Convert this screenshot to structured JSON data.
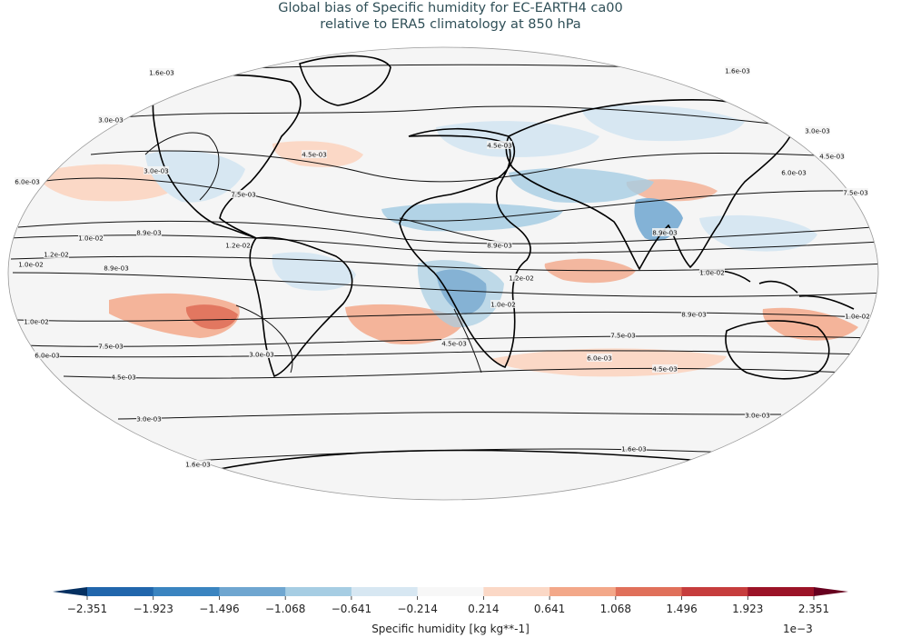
{
  "title": {
    "line1": "Global bias of Specific humidity for EC-EARTH4 ca00",
    "line2": "relative to ERA5 climatology at 850 hPa"
  },
  "colorbar": {
    "ticks": [
      "−2.351",
      "−1.923",
      "−1.496",
      "−1.068",
      "−0.641",
      "−0.214",
      "0.214",
      "0.641",
      "1.068",
      "1.496",
      "1.923",
      "2.351"
    ],
    "colors": [
      "#2166ac",
      "#3a84c0",
      "#6fa6d0",
      "#a6cde3",
      "#d7e7f2",
      "#f7f7f7",
      "#fbd8c6",
      "#f3a889",
      "#e0705a",
      "#c63d3d",
      "#9b1327"
    ],
    "under_color": "#053061",
    "over_color": "#67001f",
    "label": "Specific humidity [kg kg**-1]",
    "multiplier": "1e−3"
  },
  "map": {
    "projection": "robinson",
    "background_color": "#f5f5f5",
    "contour_labels": [
      {
        "text": "1.6e-03",
        "id": "n-1"
      },
      {
        "text": "1.6e-03",
        "id": "n-2"
      },
      {
        "text": "3.0e-03",
        "id": "n-3"
      },
      {
        "text": "3.0e-03",
        "id": "n-4"
      },
      {
        "text": "3.0e-03",
        "id": "n-5"
      },
      {
        "text": "4.5e-03",
        "id": "n-6"
      },
      {
        "text": "4.5e-03",
        "id": "n-7"
      },
      {
        "text": "4.5e-03",
        "id": "n-8"
      },
      {
        "text": "6.0e-03",
        "id": "n-9"
      },
      {
        "text": "6.0e-03",
        "id": "n-10"
      },
      {
        "text": "7.5e-03",
        "id": "n-11"
      },
      {
        "text": "7.5e-03",
        "id": "n-12"
      },
      {
        "text": "8.9e-03",
        "id": "n-13"
      },
      {
        "text": "8.9e-03",
        "id": "n-14"
      },
      {
        "text": "8.9e-03",
        "id": "n-15"
      },
      {
        "text": "1.0e-02",
        "id": "t-1"
      },
      {
        "text": "1.2e-02",
        "id": "t-2"
      },
      {
        "text": "1.0e-02",
        "id": "t-3"
      },
      {
        "text": "8.9e-03",
        "id": "t-4"
      },
      {
        "text": "1.2e-02",
        "id": "t-5"
      },
      {
        "text": "1.0e-02",
        "id": "t-6"
      },
      {
        "text": "1.2e-02",
        "id": "t-7"
      },
      {
        "text": "1.0e-02",
        "id": "t-8"
      },
      {
        "text": "1.0e-02",
        "id": "t-9"
      },
      {
        "text": "8.9e-03",
        "id": "t-10"
      },
      {
        "text": "1.0e-02",
        "id": "s-1"
      },
      {
        "text": "7.5e-03",
        "id": "s-2"
      },
      {
        "text": "7.5e-03",
        "id": "s-3"
      },
      {
        "text": "6.0e-03",
        "id": "s-4"
      },
      {
        "text": "6.0e-03",
        "id": "s-5"
      },
      {
        "text": "4.5e-03",
        "id": "s-6"
      },
      {
        "text": "4.5e-03",
        "id": "s-7"
      },
      {
        "text": "4.5e-03",
        "id": "s-8"
      },
      {
        "text": "3.0e-03",
        "id": "s-9"
      },
      {
        "text": "3.0e-03",
        "id": "s-10"
      },
      {
        "text": "3.0e-03",
        "id": "s-11"
      },
      {
        "text": "1.6e-03",
        "id": "s-12"
      },
      {
        "text": "1.6e-03",
        "id": "s-13"
      }
    ]
  }
}
